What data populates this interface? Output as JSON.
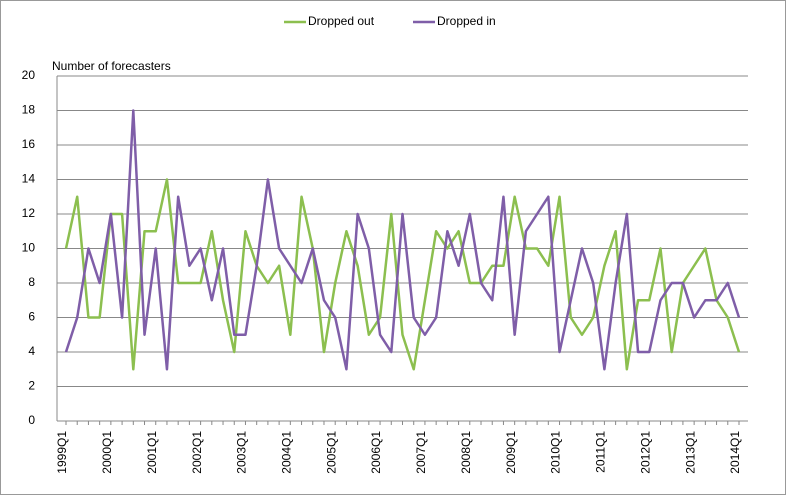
{
  "chart_data": {
    "type": "line",
    "y_label": "Number of forecasters",
    "categories": [
      "1999Q1",
      null,
      null,
      null,
      "2000Q1",
      null,
      null,
      null,
      "2001Q1",
      null,
      null,
      null,
      "2002Q1",
      null,
      null,
      null,
      "2003Q1",
      null,
      null,
      null,
      "2004Q1",
      null,
      null,
      null,
      "2005Q1",
      null,
      null,
      null,
      "2006Q1",
      null,
      null,
      null,
      "2007Q1",
      null,
      null,
      null,
      "2008Q1",
      null,
      null,
      null,
      "2009Q1",
      null,
      null,
      null,
      "2010Q1",
      null,
      null,
      null,
      "2011Q1",
      null,
      null,
      null,
      "2012Q1",
      null,
      null,
      null,
      "2013Q1",
      null,
      null,
      null,
      "2014Q1"
    ],
    "series": [
      {
        "name": "Dropped out",
        "color": "#8cbf4f",
        "values": [
          10,
          13,
          6,
          6,
          12,
          12,
          3,
          11,
          11,
          14,
          8,
          8,
          8,
          11,
          7,
          4,
          11,
          9,
          8,
          9,
          5,
          13,
          10,
          4,
          8,
          11,
          9,
          5,
          6,
          12,
          5,
          3,
          7,
          11,
          10,
          11,
          8,
          8,
          9,
          9,
          13,
          10,
          10,
          9,
          13,
          6,
          5,
          6,
          9,
          11,
          3,
          7,
          7,
          10,
          4,
          8,
          9,
          10,
          7,
          6,
          4
        ]
      },
      {
        "name": "Dropped in",
        "color": "#7f5ea8",
        "values": [
          4,
          6,
          10,
          8,
          12,
          6,
          18,
          5,
          10,
          3,
          13,
          9,
          10,
          7,
          10,
          5,
          5,
          9,
          14,
          10,
          9,
          8,
          10,
          7,
          6,
          3,
          12,
          10,
          5,
          4,
          12,
          6,
          5,
          6,
          11,
          9,
          12,
          8,
          7,
          13,
          5,
          11,
          12,
          13,
          4,
          7,
          10,
          8,
          3,
          8,
          12,
          4,
          4,
          7,
          8,
          8,
          6,
          7,
          7,
          8,
          6
        ]
      }
    ],
    "ylim": [
      0,
      20
    ],
    "yticks": [
      0,
      2,
      4,
      6,
      8,
      10,
      12,
      14,
      16,
      18,
      20
    ],
    "grid": true,
    "legend": "top"
  }
}
